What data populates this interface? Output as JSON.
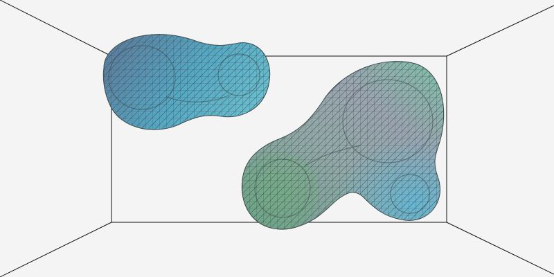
{
  "scene": {
    "background": "#f4f4f4",
    "edge_color": "#111111",
    "wire_color": "#3c4a4a",
    "blobs": [
      {
        "name": "blob-upper-left",
        "colors": [
          "#5b7fa0",
          "#55a8c4",
          "#6ac0d0"
        ]
      },
      {
        "name": "blob-right",
        "colors": [
          "#6aa089",
          "#9aa4b0",
          "#5fb8d8"
        ]
      }
    ]
  }
}
